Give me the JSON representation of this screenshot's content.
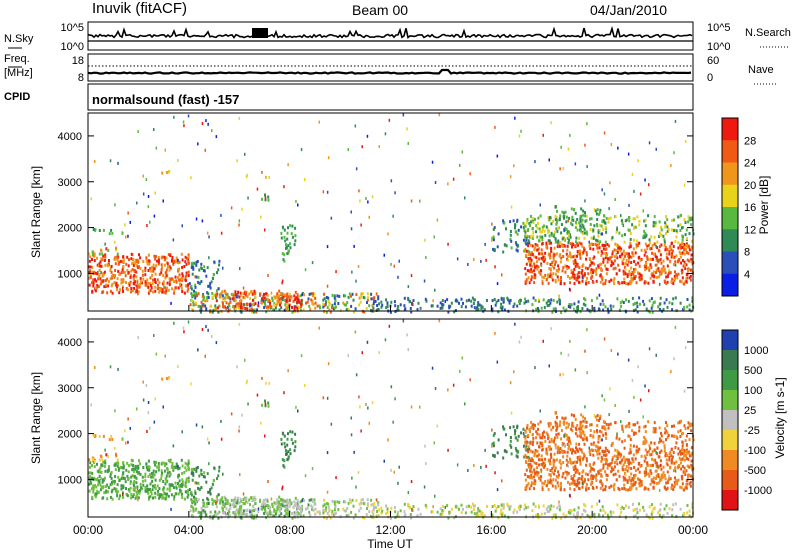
{
  "header": {
    "station": "Inuvik (fitACF)",
    "beam": "Beam 00",
    "date": "04/Jan/2010"
  },
  "noise_panel": {
    "left_label": "N.Sky",
    "right_label": "N.Search",
    "left_ticks": [
      "10^5",
      "10^0"
    ],
    "right_ticks": [
      "10^5",
      "10^0"
    ]
  },
  "freq_panel": {
    "left_label_1": "Freq.",
    "left_label_2": "[MHz]",
    "right_label": "Nave",
    "left_ticks": [
      "18",
      "8"
    ],
    "right_ticks": [
      "60",
      "0"
    ]
  },
  "cpid": {
    "label": "CPID",
    "text": "normalsound (fast) -157"
  },
  "chart_data": [
    {
      "type": "heatmap",
      "quantity": "Power",
      "ylabel": "Slant Range [km]",
      "colorbar_label": "Power [dB]",
      "yticks": [
        "1000",
        "2000",
        "3000",
        "4000"
      ],
      "ylim": [
        180,
        4500
      ],
      "colorbar_ticks": [
        "4",
        "8",
        "12",
        "16",
        "20",
        "24",
        "28"
      ],
      "colorbar_colors": [
        "#0a1ee6",
        "#2b4fb8",
        "#2f8a55",
        "#58b840",
        "#e8d21a",
        "#f0961c",
        "#f05a14",
        "#ee1a10"
      ]
    },
    {
      "type": "heatmap",
      "quantity": "Velocity",
      "ylabel": "Slant Range [km]",
      "colorbar_label": "Velocity [m s-1]",
      "yticks": [
        "1000",
        "2000",
        "3000",
        "4000"
      ],
      "ylim": [
        180,
        4500
      ],
      "colorbar_ticks": [
        "1000",
        "500",
        "100",
        "25",
        "-25",
        "-100",
        "-500",
        "-1000"
      ],
      "colorbar_colors": [
        "#2040b0",
        "#3a7a50",
        "#3f9a45",
        "#70c040",
        "#c0c0c0",
        "#f0d23c",
        "#f08a22",
        "#e85a18",
        "#e01414"
      ]
    }
  ],
  "xaxis": {
    "ticks": [
      "00:00",
      "04:00",
      "08:00",
      "12:00",
      "16:00",
      "20:00",
      "00:00"
    ],
    "label": "Time UT"
  }
}
